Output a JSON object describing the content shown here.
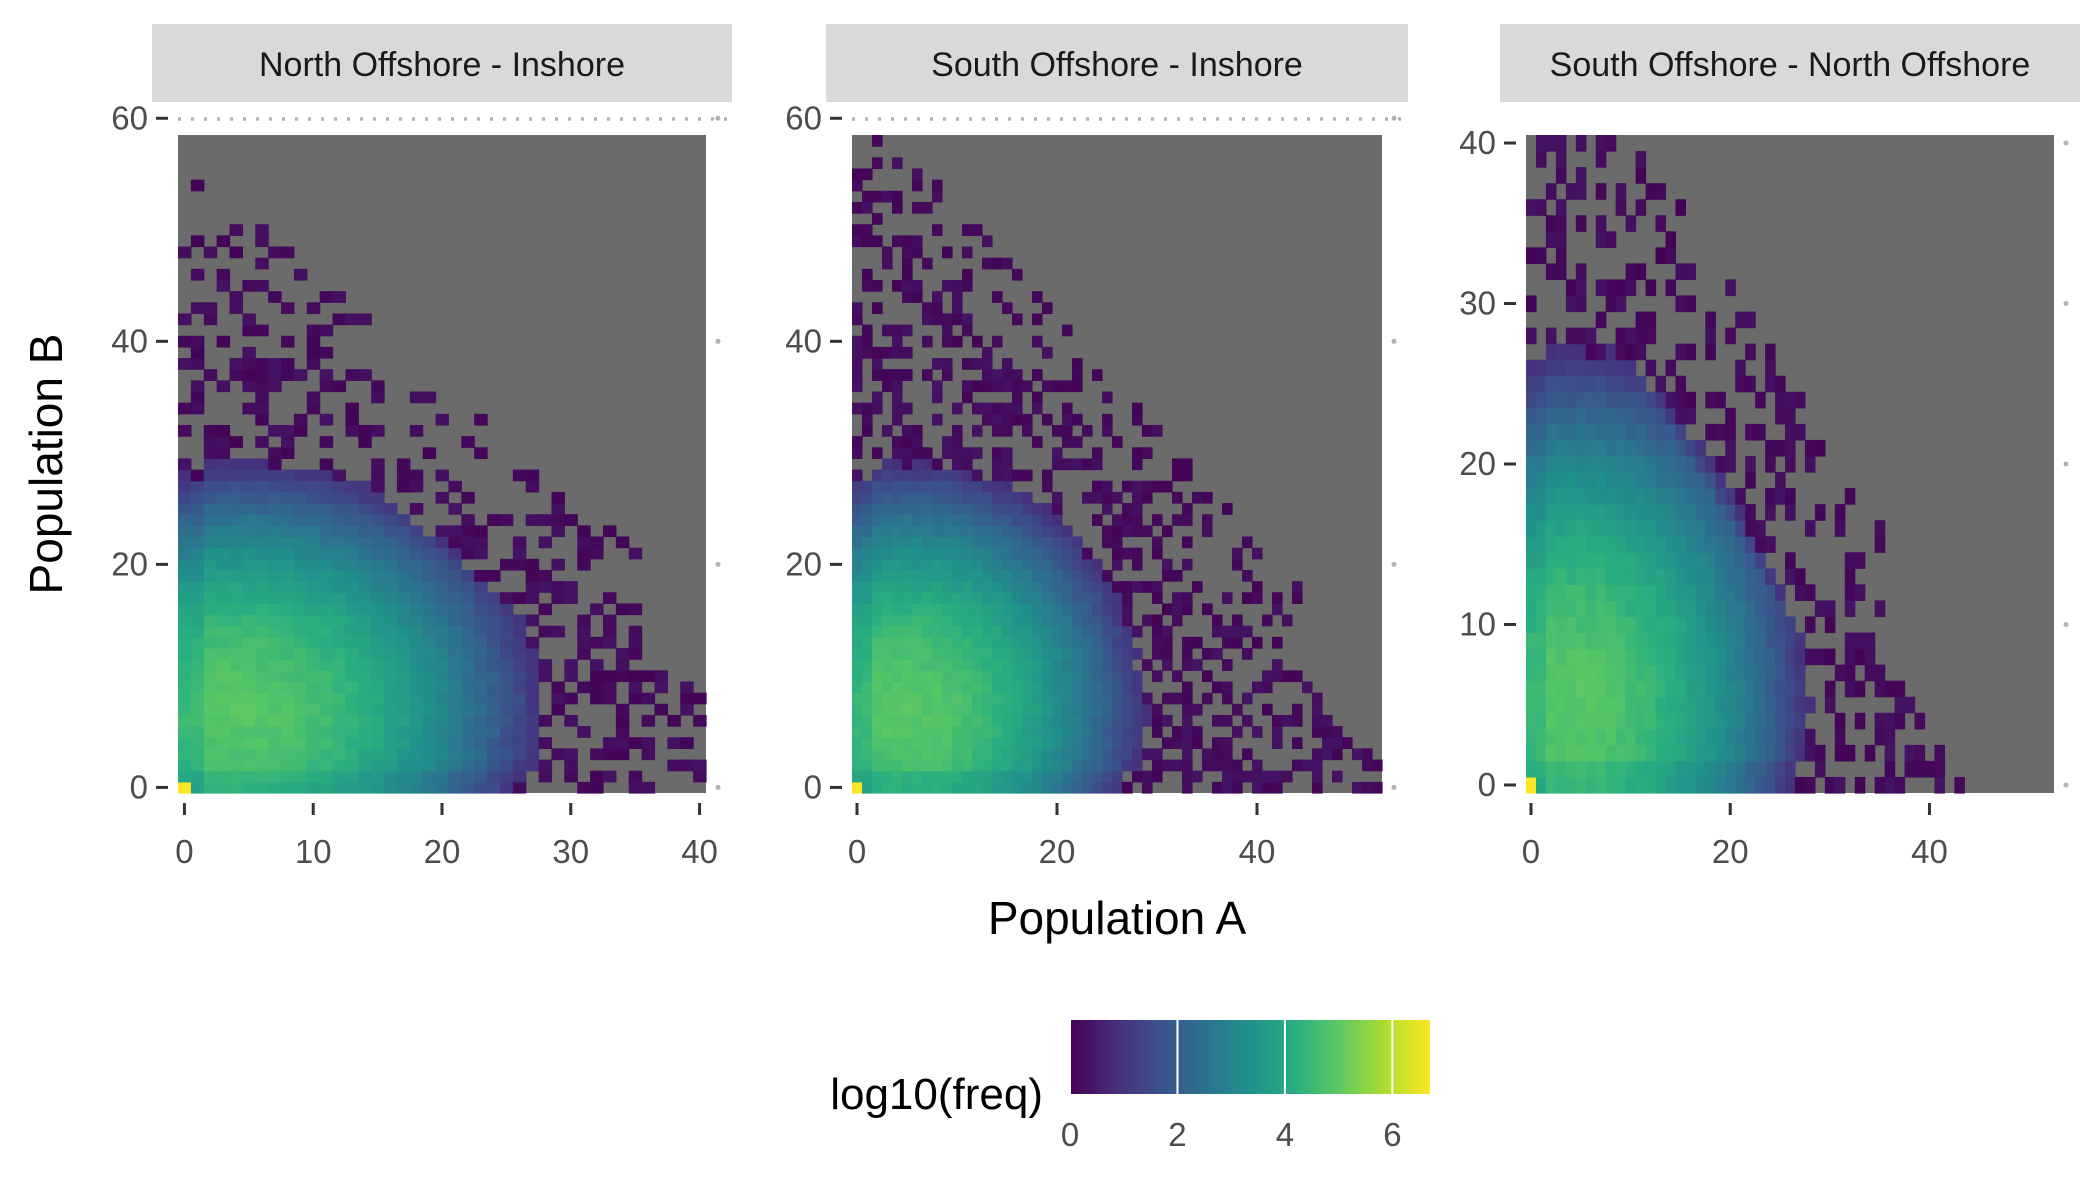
{
  "chart_data": {
    "type": "heatmap",
    "xlabel": "Population A",
    "ylabel": "Population B",
    "fill_label": "log10(freq)",
    "fill_range": [
      0,
      6.7
    ],
    "fill_ticks": [
      0,
      2,
      4,
      6
    ],
    "colormap": "viridis",
    "panel_background": "#6b6b6b",
    "strip_background": "#d9d9d9",
    "facets": [
      {
        "name": "North Offshore - Inshore",
        "xlim": [
          -0.5,
          40.5
        ],
        "ylim": [
          -0.5,
          58.5
        ],
        "xticks": [
          0,
          10,
          20,
          30,
          40
        ],
        "yticks": [
          0,
          20,
          40,
          60
        ],
        "peak": [
          4,
          7
        ],
        "cap_sum": 49,
        "tail_xmax": 36
      },
      {
        "name": "South Offshore - Inshore",
        "xlim": [
          -0.5,
          52.5
        ],
        "ylim": [
          -0.5,
          58.5
        ],
        "xticks": [
          0,
          20,
          40
        ],
        "yticks": [
          0,
          20,
          40,
          60
        ],
        "peak": [
          5,
          7
        ],
        "cap_sum": 55,
        "tail_xmax": 44
      },
      {
        "name": "South Offshore - North Offshore",
        "xlim": [
          -0.5,
          52.5
        ],
        "ylim": [
          -0.5,
          40.5
        ],
        "xticks": [
          0,
          20,
          40
        ],
        "yticks": [
          0,
          10,
          20,
          30,
          40
        ],
        "peak": [
          4,
          5
        ],
        "cap_sum": 44,
        "tail_xmax": 36
      }
    ]
  }
}
